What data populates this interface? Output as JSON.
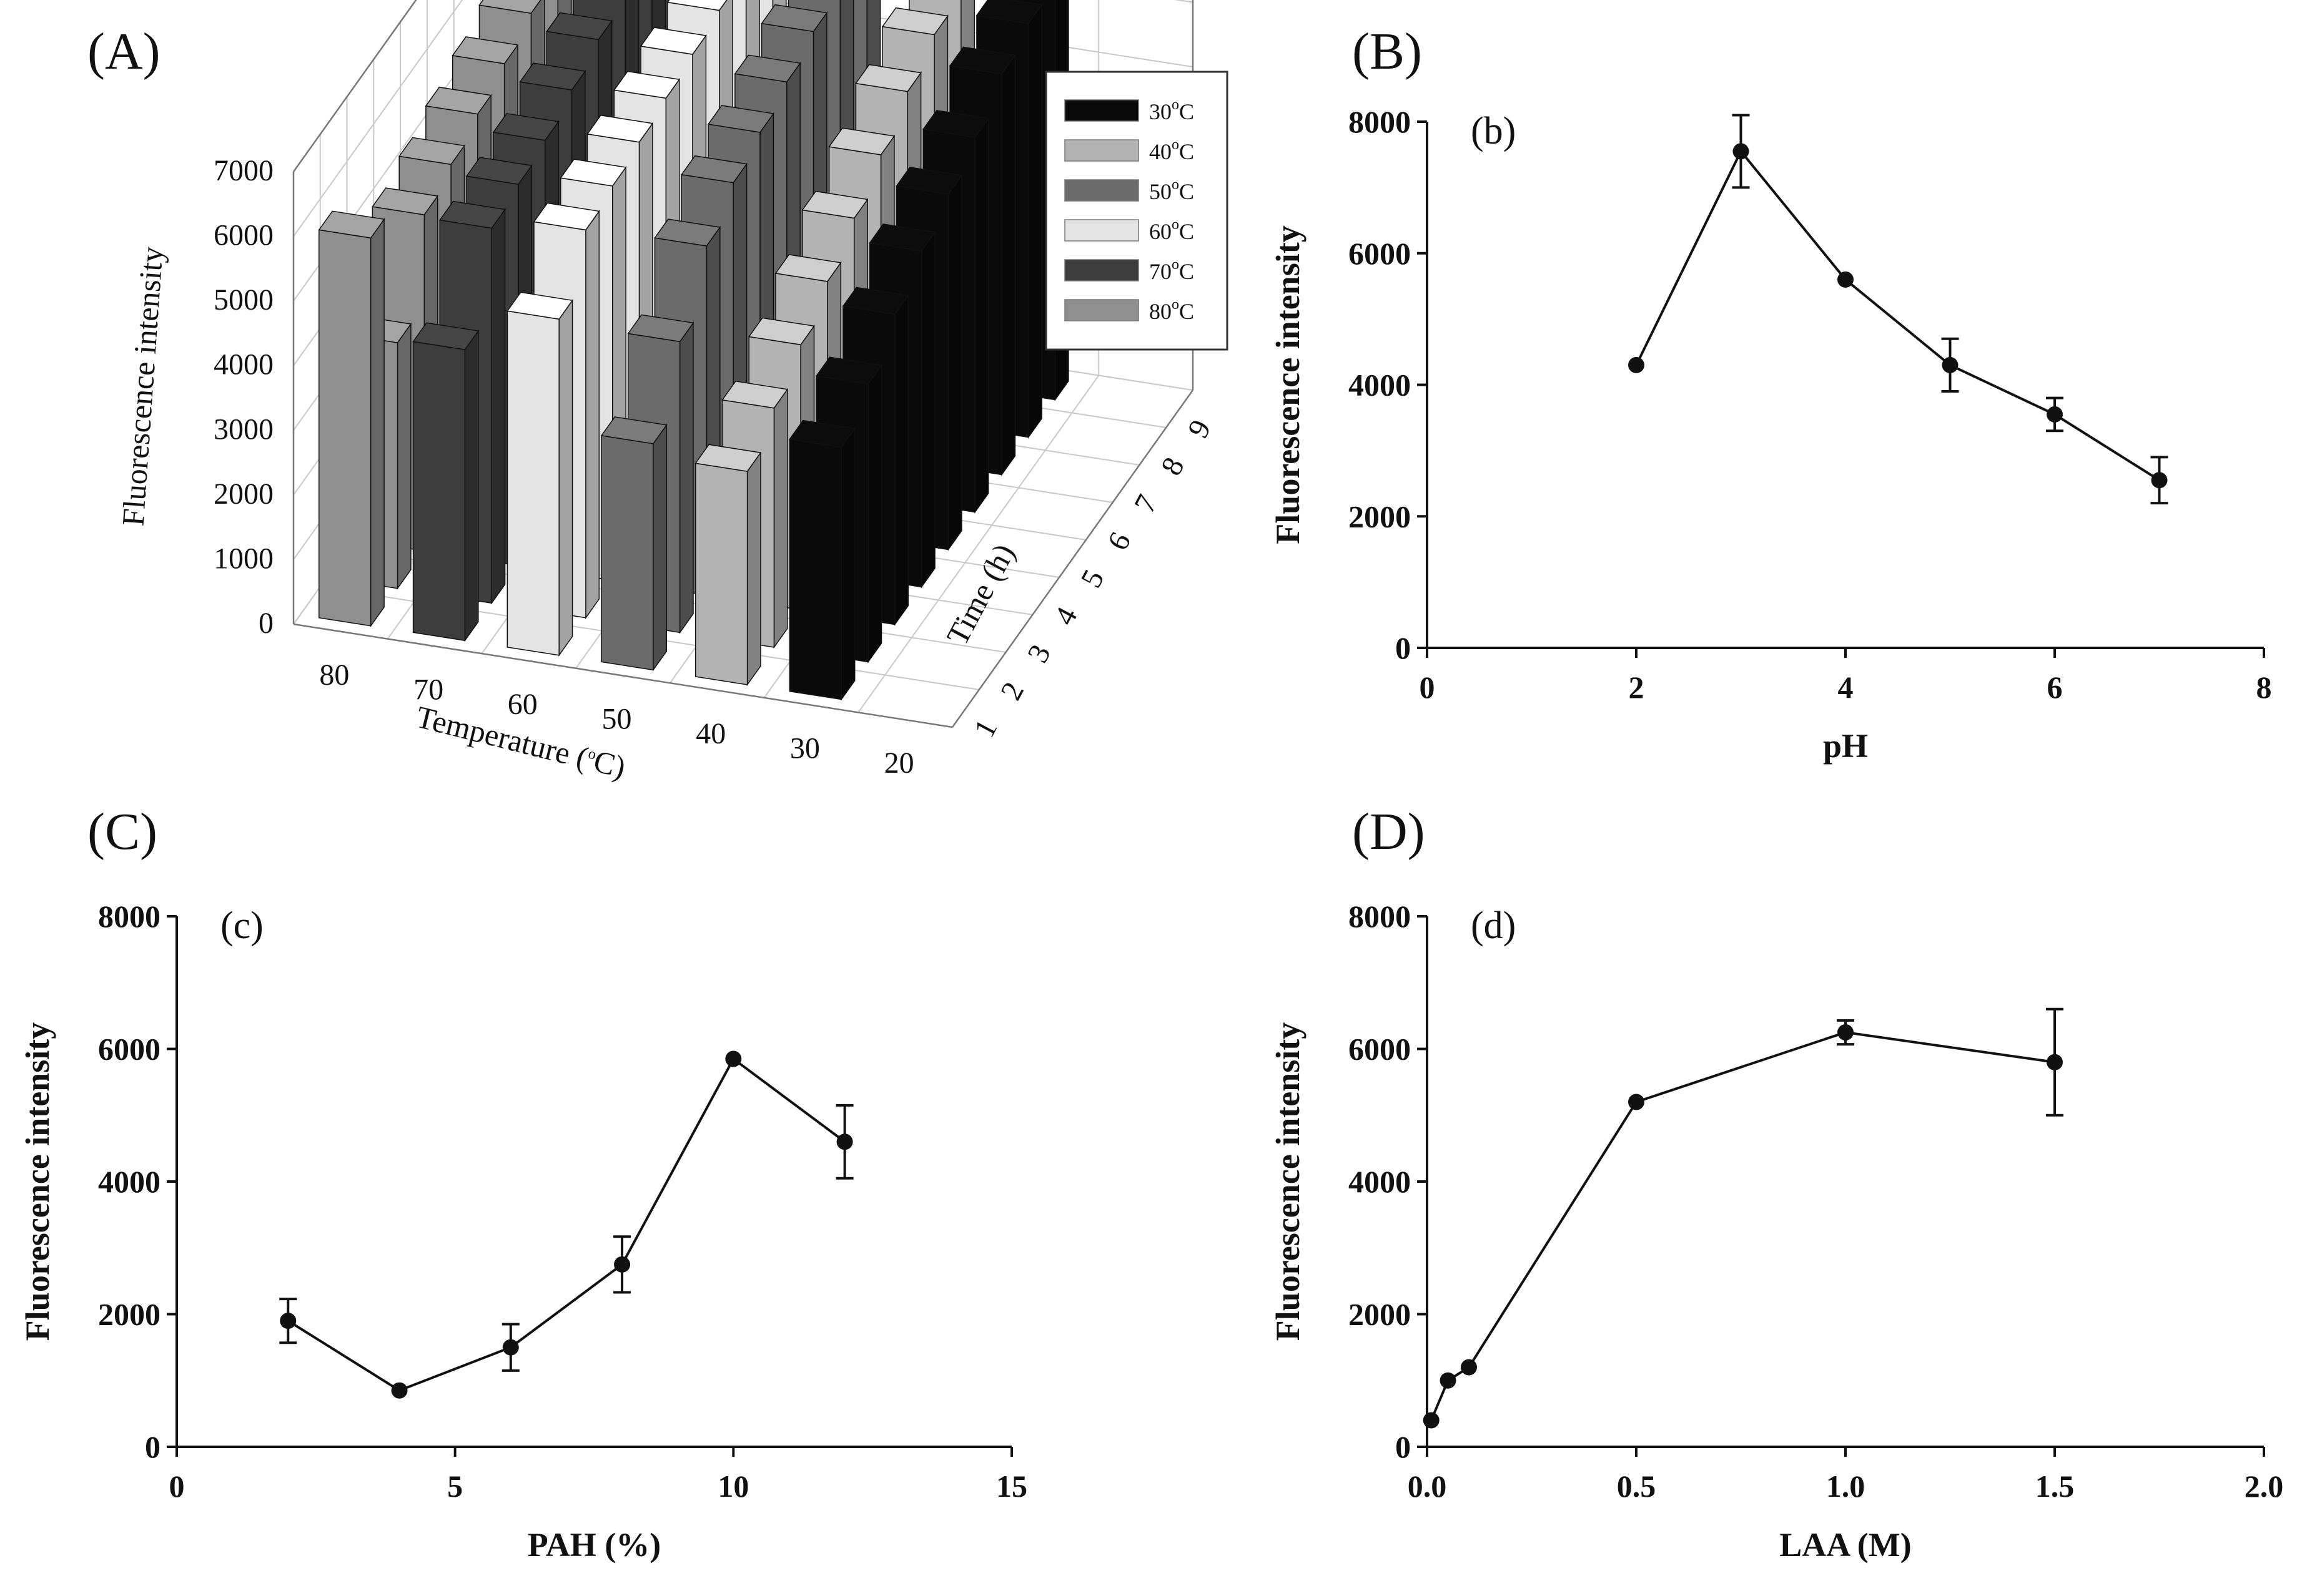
{
  "chart_data": [
    {
      "panel": "(A)",
      "type": "bar3d",
      "zlabel": "Fluorescence intensity",
      "xlabel": "Temperature (oC)",
      "ylabel": "Time (h)",
      "x_ticks": [
        "80",
        "70",
        "60",
        "50",
        "40",
        "30",
        "20"
      ],
      "y_ticks": [
        "1",
        "2",
        "3",
        "4",
        "5",
        "6",
        "7",
        "8",
        "9"
      ],
      "z_ticks": [
        "0",
        "1000",
        "2000",
        "3000",
        "4000",
        "5000",
        "6000",
        "7000"
      ],
      "zlim": [
        0,
        7000
      ],
      "legend": [
        {
          "label": "30",
          "unit": "C",
          "color": "#0a0a0a"
        },
        {
          "label": "40",
          "unit": "C",
          "color": "#b3b3b3"
        },
        {
          "label": "50",
          "unit": "C",
          "color": "#6b6b6b"
        },
        {
          "label": "60",
          "unit": "C",
          "color": "#e3e3e3"
        },
        {
          "label": "70",
          "unit": "C",
          "color": "#3d3d3d"
        },
        {
          "label": "80",
          "unit": "C",
          "color": "#8f8f8f"
        }
      ],
      "series": [
        {
          "name": "80",
          "color": "#8f8f8f",
          "hours": [
            1,
            2,
            3,
            4,
            5,
            6,
            7,
            8,
            9
          ],
          "values": [
            6000,
            3800,
            5200,
            5400,
            5600,
            5800,
            6000,
            6100,
            6200
          ]
        },
        {
          "name": "70",
          "color": "#3d3d3d",
          "hours": [
            1,
            2,
            3,
            4,
            5,
            6,
            7,
            8,
            9
          ],
          "values": [
            4500,
            5800,
            5900,
            6000,
            6200,
            6400,
            6500,
            6600,
            6700
          ]
        },
        {
          "name": "60",
          "color": "#e3e3e3",
          "hours": [
            1,
            2,
            3,
            4,
            5,
            6,
            7,
            8,
            9
          ],
          "values": [
            5200,
            6000,
            6100,
            6200,
            6300,
            6400,
            6500,
            6600,
            6600
          ]
        },
        {
          "name": "50",
          "color": "#6b6b6b",
          "hours": [
            1,
            2,
            3,
            4,
            5,
            6,
            7,
            8,
            9
          ],
          "values": [
            3500,
            4500,
            5400,
            5800,
            6000,
            6200,
            6400,
            6500,
            6600
          ]
        },
        {
          "name": "40",
          "color": "#b3b3b3",
          "hours": [
            1,
            2,
            3,
            4,
            5,
            6,
            7,
            8,
            9
          ],
          "values": [
            3300,
            3700,
            4100,
            4500,
            4900,
            5300,
            5700,
            6000,
            6200
          ]
        },
        {
          "name": "30",
          "color": "#0a0a0a",
          "hours": [
            1,
            2,
            3,
            4,
            5,
            6,
            7,
            8,
            9
          ],
          "values": [
            3900,
            4300,
            4800,
            5200,
            5500,
            5800,
            6200,
            6400,
            6500
          ]
        }
      ]
    },
    {
      "panel": "(B)",
      "label": "(b)",
      "type": "line",
      "xlabel": "pH",
      "ylabel": "Fluorescence intensity",
      "xlim": [
        0,
        8
      ],
      "ylim": [
        0,
        8000
      ],
      "x_ticks": [
        0,
        2,
        4,
        6,
        8
      ],
      "y_ticks": [
        0,
        2000,
        4000,
        6000,
        8000
      ],
      "x": [
        2,
        3,
        4,
        5,
        6,
        7
      ],
      "y": [
        4300,
        7550,
        5600,
        4300,
        3550,
        2550
      ],
      "err": [
        0,
        550,
        0,
        400,
        250,
        350
      ]
    },
    {
      "panel": "(C)",
      "label": "(c)",
      "type": "line",
      "xlabel": "PAH (%)",
      "ylabel": "Fluorescence intensity",
      "xlim": [
        0,
        15
      ],
      "ylim": [
        0,
        8000
      ],
      "x_ticks": [
        0,
        5,
        10,
        15
      ],
      "y_ticks": [
        0,
        2000,
        4000,
        6000,
        8000
      ],
      "x": [
        2,
        4,
        6,
        8,
        10,
        12
      ],
      "y": [
        1900,
        850,
        1500,
        2750,
        5850,
        4600
      ],
      "err": [
        330,
        0,
        350,
        420,
        0,
        550
      ]
    },
    {
      "panel": "(D)",
      "label": "(d)",
      "type": "line",
      "xlabel": "LAA (M)",
      "ylabel": "Fluorescence intensity",
      "xlim": [
        0,
        2
      ],
      "ylim": [
        0,
        8000
      ],
      "x_ticks": [
        0.0,
        0.5,
        1.0,
        1.5,
        2.0
      ],
      "x_tick_labels": [
        "0.0",
        "0.5",
        "1.0",
        "1.5",
        "2.0"
      ],
      "y_ticks": [
        0,
        2000,
        4000,
        6000,
        8000
      ],
      "x": [
        0.01,
        0.05,
        0.1,
        0.5,
        1.0,
        1.5
      ],
      "y": [
        400,
        1000,
        1200,
        5200,
        6250,
        5800
      ],
      "err": [
        0,
        0,
        0,
        0,
        180,
        800
      ]
    }
  ]
}
